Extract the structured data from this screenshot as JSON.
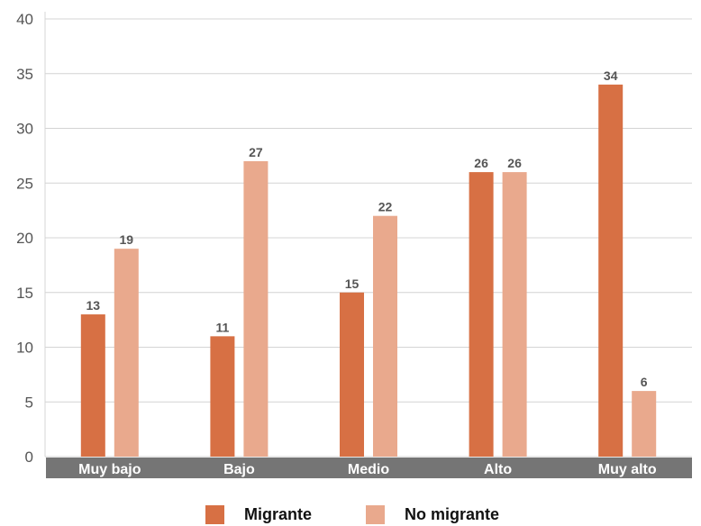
{
  "chart_data": {
    "type": "bar",
    "title": "",
    "xlabel": "",
    "ylabel": "",
    "categories": [
      "Muy bajo",
      "Bajo",
      "Medio",
      "Alto",
      "Muy alto"
    ],
    "series": [
      {
        "name": "Migrante",
        "color": "#D77044",
        "values": [
          13,
          11,
          15,
          26,
          34
        ]
      },
      {
        "name": "No migrante",
        "color": "#E9A98D",
        "values": [
          19,
          27,
          22,
          26,
          6
        ]
      }
    ],
    "ylim": [
      0,
      40
    ],
    "yticks": [
      0,
      5,
      10,
      15,
      20,
      25,
      30,
      35,
      40
    ],
    "grid": true,
    "legend": "bottom",
    "category_band_color": "#757575"
  }
}
